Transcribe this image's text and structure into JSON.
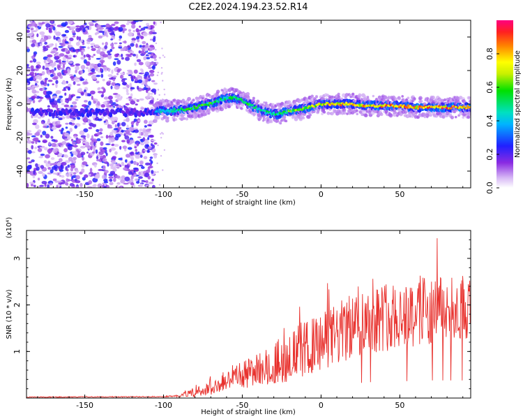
{
  "title": "C2E2.2024.194.23.52.R14",
  "colors": {
    "snr_line": "#e8302c",
    "ink": "#000000",
    "noise_purple": "#8a2be2"
  },
  "chart_data": [
    {
      "type": "heatmap",
      "xlabel": "Height of straight line (km)",
      "ylabel": "Frequency (Hz)",
      "xlim": [
        -187,
        95
      ],
      "ylim": [
        -50,
        50
      ],
      "x_ticks": [
        "-150",
        "-100",
        "-50",
        "0",
        "50"
      ],
      "x_tick_values": [
        -150,
        -100,
        -50,
        0,
        50
      ],
      "y_ticks": [
        "-40",
        "-20",
        "0",
        "20",
        "40"
      ],
      "y_tick_values": [
        -40,
        -20,
        0,
        20,
        40
      ],
      "colorbar": {
        "label": "Normalized spectral amplitude",
        "range": [
          0,
          1
        ],
        "ticks": [
          "0.0",
          "0.2",
          "0.4",
          "0.6",
          "0.8"
        ],
        "tick_values": [
          0.0,
          0.2,
          0.4,
          0.6,
          0.8
        ],
        "colormap": "rainbow-magenta-to-red"
      },
      "noise_region_x": [
        -187,
        -105
      ],
      "trace": {
        "x": [
          -105,
          -95,
          -85,
          -75,
          -68,
          -62,
          -56,
          -52,
          -48,
          -42,
          -35,
          -28,
          -20,
          -12,
          -5,
          0,
          10,
          20,
          30,
          40,
          50,
          60,
          70,
          80,
          90,
          95
        ],
        "y": [
          -4,
          -4,
          -3,
          -1,
          1,
          3,
          4,
          3,
          1,
          -2,
          -5,
          -6,
          -4,
          -3,
          -1,
          0,
          0,
          0,
          -1,
          -1,
          -1,
          -2,
          -2,
          -2,
          -2,
          -2
        ],
        "amplitude": [
          0.45,
          0.55,
          0.6,
          0.62,
          0.6,
          0.55,
          0.6,
          0.58,
          0.6,
          0.55,
          0.55,
          0.55,
          0.65,
          0.7,
          0.75,
          0.8,
          0.85,
          0.88,
          0.85,
          0.88,
          0.88,
          0.9,
          0.92,
          0.94,
          0.95,
          0.95
        ]
      }
    },
    {
      "type": "line",
      "xlabel": "Height of straight line (km)",
      "ylabel": "SNR (10 * v/v)",
      "y_multiplier_label": "(x10⁴)",
      "xlim": [
        -187,
        95
      ],
      "ylim": [
        0,
        3.6
      ],
      "x_ticks": [
        "-150",
        "-100",
        "-50",
        "0",
        "50"
      ],
      "x_tick_values": [
        -150,
        -100,
        -50,
        0,
        50
      ],
      "y_ticks": [
        "1",
        "2",
        "3"
      ],
      "y_tick_values": [
        1,
        2,
        3
      ],
      "envelope": {
        "x": [
          -187,
          -100,
          -90,
          -80,
          -70,
          -60,
          -50,
          -40,
          -30,
          -20,
          -10,
          0,
          10,
          20,
          30,
          40,
          50,
          60,
          70,
          80,
          95
        ],
        "mean": [
          0.02,
          0.03,
          0.05,
          0.12,
          0.22,
          0.35,
          0.5,
          0.62,
          0.75,
          0.9,
          1.05,
          1.2,
          1.35,
          1.55,
          1.7,
          1.75,
          1.8,
          1.85,
          1.9,
          1.9,
          1.9
        ],
        "spread": [
          0.01,
          0.01,
          0.03,
          0.1,
          0.15,
          0.22,
          0.3,
          0.35,
          0.45,
          0.55,
          0.6,
          0.6,
          0.7,
          0.7,
          0.75,
          0.75,
          0.75,
          0.8,
          0.75,
          0.7,
          0.7
        ]
      }
    }
  ]
}
